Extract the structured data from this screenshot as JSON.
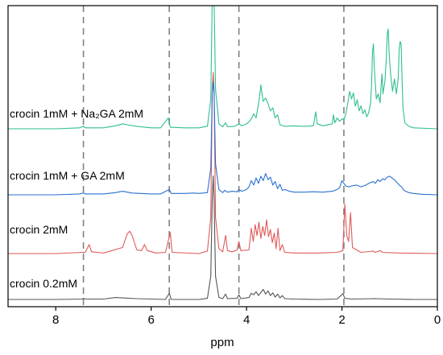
{
  "chart_data": {
    "type": "line",
    "xlabel": "ppm",
    "xlim": [
      9,
      0
    ],
    "x_reversed": true,
    "xticks": [
      8,
      6,
      4,
      2,
      0
    ],
    "y_axis_visible": false,
    "grid": false,
    "legend": "labels placed above each trace on the left",
    "reference_lines_ppm": [
      7.42,
      5.62,
      4.16,
      1.96
    ],
    "reference_line_style": "dashed",
    "series": [
      {
        "name": "crocin 0.2mM",
        "color": "#555555",
        "baseline": 0.0,
        "points": [
          [
            9.0,
            0.0
          ],
          [
            8.0,
            0.0
          ],
          [
            7.45,
            0.01
          ],
          [
            7.42,
            0.03
          ],
          [
            7.38,
            0.01
          ],
          [
            7.0,
            0.01
          ],
          [
            6.75,
            0.05
          ],
          [
            6.6,
            0.04
          ],
          [
            6.3,
            0.02
          ],
          [
            6.0,
            0.01
          ],
          [
            5.7,
            0.0
          ],
          [
            5.62,
            0.16
          ],
          [
            5.58,
            0.0
          ],
          [
            5.0,
            0.0
          ],
          [
            4.82,
            0.03
          ],
          [
            4.75,
            0.6
          ],
          [
            4.72,
            2.6
          ],
          [
            4.7,
            3.2
          ],
          [
            4.68,
            2.6
          ],
          [
            4.65,
            0.6
          ],
          [
            4.58,
            0.05
          ],
          [
            4.5,
            0.02
          ],
          [
            4.44,
            0.14
          ],
          [
            4.4,
            0.02
          ],
          [
            4.2,
            0.03
          ],
          [
            4.16,
            0.12
          ],
          [
            4.12,
            0.02
          ],
          [
            3.95,
            0.05
          ],
          [
            3.9,
            0.16
          ],
          [
            3.85,
            0.12
          ],
          [
            3.8,
            0.2
          ],
          [
            3.75,
            0.1
          ],
          [
            3.7,
            0.18
          ],
          [
            3.65,
            0.26
          ],
          [
            3.6,
            0.14
          ],
          [
            3.55,
            0.22
          ],
          [
            3.5,
            0.1
          ],
          [
            3.45,
            0.17
          ],
          [
            3.4,
            0.06
          ],
          [
            3.35,
            0.14
          ],
          [
            3.3,
            0.04
          ],
          [
            3.25,
            0.1
          ],
          [
            3.2,
            0.02
          ],
          [
            3.0,
            0.01
          ],
          [
            2.5,
            0.0
          ],
          [
            2.1,
            0.01
          ],
          [
            1.98,
            0.15
          ],
          [
            1.94,
            0.03
          ],
          [
            1.8,
            0.01
          ],
          [
            1.3,
            0.02
          ],
          [
            1.0,
            0.01
          ],
          [
            0.5,
            0.0
          ],
          [
            0.0,
            0.0
          ]
        ]
      },
      {
        "name": "crocin 2mM",
        "color": "#e05a5a",
        "baseline": 0.0,
        "points": [
          [
            9.0,
            0.0
          ],
          [
            8.0,
            0.0
          ],
          [
            7.45,
            0.02
          ],
          [
            7.38,
            0.02
          ],
          [
            7.3,
            0.15
          ],
          [
            7.25,
            0.03
          ],
          [
            7.0,
            0.01
          ],
          [
            6.6,
            0.1
          ],
          [
            6.5,
            0.33
          ],
          [
            6.45,
            0.37
          ],
          [
            6.4,
            0.3
          ],
          [
            6.3,
            0.06
          ],
          [
            6.2,
            0.05
          ],
          [
            6.14,
            0.15
          ],
          [
            6.08,
            0.05
          ],
          [
            5.9,
            0.01
          ],
          [
            5.7,
            0.02
          ],
          [
            5.6,
            0.35
          ],
          [
            5.56,
            0.02
          ],
          [
            5.0,
            0.0
          ],
          [
            4.82,
            0.04
          ],
          [
            4.75,
            0.6
          ],
          [
            4.72,
            2.7
          ],
          [
            4.7,
            3.0
          ],
          [
            4.68,
            2.7
          ],
          [
            4.65,
            0.6
          ],
          [
            4.58,
            0.08
          ],
          [
            4.5,
            0.03
          ],
          [
            4.44,
            0.3
          ],
          [
            4.4,
            0.05
          ],
          [
            4.3,
            0.03
          ],
          [
            4.2,
            0.06
          ],
          [
            4.16,
            0.2
          ],
          [
            4.12,
            0.05
          ],
          [
            3.95,
            0.06
          ],
          [
            3.9,
            0.42
          ],
          [
            3.86,
            0.2
          ],
          [
            3.82,
            0.48
          ],
          [
            3.78,
            0.3
          ],
          [
            3.74,
            0.52
          ],
          [
            3.7,
            0.25
          ],
          [
            3.66,
            0.45
          ],
          [
            3.62,
            0.3
          ],
          [
            3.58,
            0.56
          ],
          [
            3.54,
            0.28
          ],
          [
            3.5,
            0.4
          ],
          [
            3.46,
            0.18
          ],
          [
            3.42,
            0.34
          ],
          [
            3.38,
            0.08
          ],
          [
            3.34,
            0.42
          ],
          [
            3.3,
            0.05
          ],
          [
            3.25,
            0.15
          ],
          [
            3.2,
            0.02
          ],
          [
            3.0,
            0.01
          ],
          [
            2.5,
            0.01
          ],
          [
            2.1,
            0.02
          ],
          [
            1.98,
            0.05
          ],
          [
            1.94,
            0.82
          ],
          [
            1.9,
            0.3
          ],
          [
            1.86,
            0.2
          ],
          [
            1.82,
            0.68
          ],
          [
            1.78,
            0.1
          ],
          [
            1.6,
            0.02
          ],
          [
            1.35,
            0.04
          ],
          [
            1.3,
            0.02
          ],
          [
            1.2,
            0.05
          ],
          [
            1.15,
            0.02
          ],
          [
            0.8,
            0.01
          ],
          [
            0.0,
            0.0
          ]
        ]
      },
      {
        "name": "crocin 1mM + GA 2mM",
        "color": "#2a6fd1",
        "baseline": 0.0,
        "points": [
          [
            9.0,
            0.0
          ],
          [
            8.0,
            0.0
          ],
          [
            7.5,
            0.02
          ],
          [
            7.42,
            0.04
          ],
          [
            7.38,
            0.02
          ],
          [
            7.0,
            0.02
          ],
          [
            6.75,
            0.05
          ],
          [
            6.6,
            0.08
          ],
          [
            6.4,
            0.04
          ],
          [
            6.0,
            0.02
          ],
          [
            5.8,
            0.02
          ],
          [
            5.62,
            0.12
          ],
          [
            5.58,
            0.03
          ],
          [
            5.3,
            0.03
          ],
          [
            5.1,
            0.04
          ],
          [
            5.0,
            0.03
          ],
          [
            4.82,
            0.05
          ],
          [
            4.75,
            0.6
          ],
          [
            4.72,
            2.3
          ],
          [
            4.7,
            2.55
          ],
          [
            4.68,
            2.3
          ],
          [
            4.65,
            0.7
          ],
          [
            4.58,
            0.12
          ],
          [
            4.5,
            0.05
          ],
          [
            4.46,
            0.1
          ],
          [
            4.4,
            0.06
          ],
          [
            4.3,
            0.08
          ],
          [
            4.2,
            0.07
          ],
          [
            4.16,
            0.12
          ],
          [
            4.1,
            0.08
          ],
          [
            4.0,
            0.12
          ],
          [
            3.95,
            0.18
          ],
          [
            3.9,
            0.32
          ],
          [
            3.85,
            0.22
          ],
          [
            3.8,
            0.38
          ],
          [
            3.75,
            0.26
          ],
          [
            3.7,
            0.42
          ],
          [
            3.65,
            0.32
          ],
          [
            3.6,
            0.48
          ],
          [
            3.55,
            0.34
          ],
          [
            3.5,
            0.4
          ],
          [
            3.45,
            0.22
          ],
          [
            3.4,
            0.3
          ],
          [
            3.35,
            0.14
          ],
          [
            3.3,
            0.24
          ],
          [
            3.25,
            0.1
          ],
          [
            3.2,
            0.12
          ],
          [
            3.1,
            0.08
          ],
          [
            3.0,
            0.06
          ],
          [
            2.8,
            0.06
          ],
          [
            2.6,
            0.07
          ],
          [
            2.4,
            0.06
          ],
          [
            2.2,
            0.08
          ],
          [
            2.1,
            0.12
          ],
          [
            2.05,
            0.16
          ],
          [
            2.0,
            0.32
          ],
          [
            1.96,
            0.26
          ],
          [
            1.92,
            0.2
          ],
          [
            1.85,
            0.18
          ],
          [
            1.8,
            0.2
          ],
          [
            1.7,
            0.22
          ],
          [
            1.6,
            0.18
          ],
          [
            1.5,
            0.22
          ],
          [
            1.4,
            0.28
          ],
          [
            1.35,
            0.3
          ],
          [
            1.3,
            0.26
          ],
          [
            1.25,
            0.34
          ],
          [
            1.2,
            0.3
          ],
          [
            1.15,
            0.36
          ],
          [
            1.1,
            0.34
          ],
          [
            1.05,
            0.4
          ],
          [
            1.0,
            0.42
          ],
          [
            0.95,
            0.38
          ],
          [
            0.9,
            0.34
          ],
          [
            0.85,
            0.28
          ],
          [
            0.8,
            0.22
          ],
          [
            0.75,
            0.18
          ],
          [
            0.7,
            0.1
          ],
          [
            0.6,
            0.05
          ],
          [
            0.5,
            0.03
          ],
          [
            0.3,
            0.01
          ],
          [
            0.0,
            0.0
          ]
        ]
      },
      {
        "name": "crocin 1mM + Na₂GA 2mM",
        "color": "#2fbf8f",
        "baseline": 0.0,
        "points": [
          [
            9.0,
            0.0
          ],
          [
            8.0,
            0.0
          ],
          [
            7.5,
            0.02
          ],
          [
            7.42,
            0.05
          ],
          [
            7.38,
            0.02
          ],
          [
            7.0,
            0.02
          ],
          [
            6.7,
            0.07
          ],
          [
            6.6,
            0.1
          ],
          [
            6.5,
            0.08
          ],
          [
            6.3,
            0.05
          ],
          [
            6.0,
            0.02
          ],
          [
            5.8,
            0.02
          ],
          [
            5.64,
            0.22
          ],
          [
            5.6,
            0.03
          ],
          [
            5.3,
            0.02
          ],
          [
            5.0,
            0.02
          ],
          [
            4.82,
            0.05
          ],
          [
            4.75,
            0.6
          ],
          [
            4.72,
            2.6
          ],
          [
            4.7,
            2.9
          ],
          [
            4.68,
            2.6
          ],
          [
            4.65,
            0.8
          ],
          [
            4.58,
            0.1
          ],
          [
            4.5,
            0.04
          ],
          [
            4.44,
            0.12
          ],
          [
            4.4,
            0.04
          ],
          [
            4.25,
            0.05
          ],
          [
            4.16,
            0.1
          ],
          [
            4.1,
            0.06
          ],
          [
            4.0,
            0.1
          ],
          [
            3.95,
            0.14
          ],
          [
            3.9,
            0.2
          ],
          [
            3.85,
            0.3
          ],
          [
            3.8,
            0.22
          ],
          [
            3.75,
            0.5
          ],
          [
            3.72,
            0.7
          ],
          [
            3.7,
            0.88
          ],
          [
            3.68,
            0.72
          ],
          [
            3.65,
            0.55
          ],
          [
            3.6,
            0.62
          ],
          [
            3.55,
            0.5
          ],
          [
            3.5,
            0.36
          ],
          [
            3.45,
            0.42
          ],
          [
            3.4,
            0.22
          ],
          [
            3.35,
            0.28
          ],
          [
            3.3,
            0.08
          ],
          [
            3.2,
            0.05
          ],
          [
            3.0,
            0.06
          ],
          [
            2.8,
            0.05
          ],
          [
            2.6,
            0.06
          ],
          [
            2.55,
            0.34
          ],
          [
            2.52,
            0.1
          ],
          [
            2.4,
            0.06
          ],
          [
            2.2,
            0.1
          ],
          [
            2.18,
            0.28
          ],
          [
            2.15,
            0.12
          ],
          [
            2.1,
            0.22
          ],
          [
            2.05,
            0.15
          ],
          [
            2.0,
            0.2
          ],
          [
            1.96,
            0.18
          ],
          [
            1.92,
            0.3
          ],
          [
            1.88,
            0.5
          ],
          [
            1.84,
            0.75
          ],
          [
            1.8,
            0.6
          ],
          [
            1.76,
            0.72
          ],
          [
            1.72,
            0.45
          ],
          [
            1.68,
            0.58
          ],
          [
            1.64,
            0.36
          ],
          [
            1.6,
            0.46
          ],
          [
            1.56,
            0.3
          ],
          [
            1.52,
            0.38
          ],
          [
            1.48,
            0.24
          ],
          [
            1.44,
            0.32
          ],
          [
            1.4,
            0.52
          ],
          [
            1.38,
            0.85
          ],
          [
            1.36,
            1.55
          ],
          [
            1.34,
            1.7
          ],
          [
            1.32,
            1.2
          ],
          [
            1.28,
            0.6
          ],
          [
            1.24,
            0.7
          ],
          [
            1.2,
            0.52
          ],
          [
            1.18,
            0.85
          ],
          [
            1.16,
            1.1
          ],
          [
            1.14,
            0.7
          ],
          [
            1.1,
            0.95
          ],
          [
            1.07,
            1.4
          ],
          [
            1.05,
            1.9
          ],
          [
            1.03,
            2.0
          ],
          [
            1.01,
            1.5
          ],
          [
            0.98,
            1.1
          ],
          [
            0.94,
            0.75
          ],
          [
            0.9,
            1.0
          ],
          [
            0.86,
            0.7
          ],
          [
            0.82,
            1.0
          ],
          [
            0.8,
            1.6
          ],
          [
            0.78,
            1.75
          ],
          [
            0.76,
            1.7
          ],
          [
            0.74,
            1.0
          ],
          [
            0.72,
            0.4
          ],
          [
            0.68,
            0.12
          ],
          [
            0.6,
            0.05
          ],
          [
            0.5,
            0.02
          ],
          [
            0.0,
            0.0
          ]
        ]
      }
    ]
  }
}
